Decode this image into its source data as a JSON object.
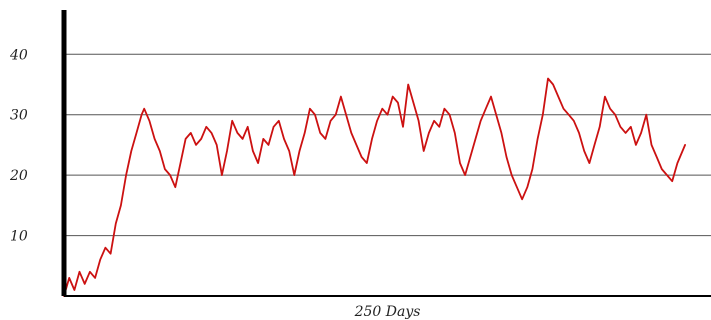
{
  "chart_data": {
    "type": "line",
    "title": "",
    "xlabel": "250 Days",
    "ylabel": "",
    "xlim": [
      0,
      250
    ],
    "ylim": [
      0,
      47
    ],
    "y_ticks": [
      10,
      20,
      30,
      40
    ],
    "y_tick_labels": [
      "10",
      "20",
      "30",
      "40"
    ],
    "grid": "horizontal",
    "legend": "none",
    "colors": {
      "line": "#cc1111",
      "grid": "#555555",
      "axis": "#000000",
      "text": "#222222"
    },
    "series": [
      {
        "values": [
          [
            0,
            0
          ],
          [
            2,
            3
          ],
          [
            4,
            1
          ],
          [
            6,
            4
          ],
          [
            8,
            2
          ],
          [
            10,
            4
          ],
          [
            12,
            3
          ],
          [
            14,
            6
          ],
          [
            16,
            8
          ],
          [
            18,
            7
          ],
          [
            20,
            12
          ],
          [
            22,
            15
          ],
          [
            24,
            20
          ],
          [
            26,
            24
          ],
          [
            28,
            27
          ],
          [
            30,
            30
          ],
          [
            31,
            31
          ],
          [
            33,
            29
          ],
          [
            35,
            26
          ],
          [
            37,
            24
          ],
          [
            39,
            21
          ],
          [
            41,
            20
          ],
          [
            43,
            18
          ],
          [
            45,
            22
          ],
          [
            47,
            26
          ],
          [
            49,
            27
          ],
          [
            51,
            25
          ],
          [
            53,
            26
          ],
          [
            55,
            28
          ],
          [
            57,
            27
          ],
          [
            59,
            25
          ],
          [
            61,
            20
          ],
          [
            63,
            24
          ],
          [
            65,
            29
          ],
          [
            67,
            27
          ],
          [
            69,
            26
          ],
          [
            71,
            28
          ],
          [
            73,
            24
          ],
          [
            75,
            22
          ],
          [
            77,
            26
          ],
          [
            79,
            25
          ],
          [
            81,
            28
          ],
          [
            83,
            29
          ],
          [
            85,
            26
          ],
          [
            87,
            24
          ],
          [
            89,
            20
          ],
          [
            91,
            24
          ],
          [
            93,
            27
          ],
          [
            95,
            31
          ],
          [
            97,
            30
          ],
          [
            99,
            27
          ],
          [
            101,
            26
          ],
          [
            103,
            29
          ],
          [
            105,
            30
          ],
          [
            107,
            33
          ],
          [
            109,
            30
          ],
          [
            111,
            27
          ],
          [
            113,
            25
          ],
          [
            115,
            23
          ],
          [
            117,
            22
          ],
          [
            119,
            26
          ],
          [
            121,
            29
          ],
          [
            123,
            31
          ],
          [
            125,
            30
          ],
          [
            127,
            33
          ],
          [
            129,
            32
          ],
          [
            131,
            28
          ],
          [
            133,
            35
          ],
          [
            135,
            32
          ],
          [
            137,
            29
          ],
          [
            139,
            24
          ],
          [
            141,
            27
          ],
          [
            143,
            29
          ],
          [
            145,
            28
          ],
          [
            147,
            31
          ],
          [
            149,
            30
          ],
          [
            151,
            27
          ],
          [
            153,
            22
          ],
          [
            155,
            20
          ],
          [
            157,
            23
          ],
          [
            159,
            26
          ],
          [
            161,
            29
          ],
          [
            163,
            31
          ],
          [
            165,
            33
          ],
          [
            167,
            30
          ],
          [
            169,
            27
          ],
          [
            171,
            23
          ],
          [
            173,
            20
          ],
          [
            175,
            18
          ],
          [
            177,
            16
          ],
          [
            179,
            18
          ],
          [
            181,
            21
          ],
          [
            183,
            26
          ],
          [
            185,
            30
          ],
          [
            187,
            36
          ],
          [
            189,
            35
          ],
          [
            191,
            33
          ],
          [
            193,
            31
          ],
          [
            195,
            30
          ],
          [
            197,
            29
          ],
          [
            199,
            27
          ],
          [
            201,
            24
          ],
          [
            203,
            22
          ],
          [
            205,
            25
          ],
          [
            207,
            28
          ],
          [
            209,
            33
          ],
          [
            211,
            31
          ],
          [
            213,
            30
          ],
          [
            215,
            28
          ],
          [
            217,
            27
          ],
          [
            219,
            28
          ],
          [
            221,
            25
          ],
          [
            223,
            27
          ],
          [
            225,
            30
          ],
          [
            227,
            25
          ],
          [
            229,
            23
          ],
          [
            231,
            21
          ],
          [
            233,
            20
          ],
          [
            235,
            19
          ],
          [
            237,
            22
          ],
          [
            240,
            25
          ]
        ]
      }
    ]
  }
}
